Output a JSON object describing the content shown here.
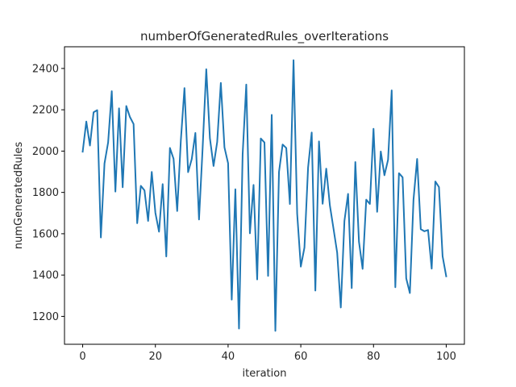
{
  "chart_data": {
    "type": "line",
    "title": "numberOfGeneratedRules_overIterations",
    "xlabel": "iteration",
    "ylabel": "numGeneratedRules",
    "xlim": [
      -5,
      105
    ],
    "ylim": [
      1065,
      2505
    ],
    "x_ticks": [
      0,
      20,
      40,
      60,
      80,
      100
    ],
    "y_ticks": [
      1200,
      1400,
      1600,
      1800,
      2000,
      2200,
      2400
    ],
    "grid": false,
    "legend": "none",
    "line_color": "#1f77b4",
    "series": [
      {
        "x": [
          0,
          1,
          2,
          3,
          4,
          5,
          6,
          7,
          8,
          9,
          10,
          11,
          12,
          13,
          14,
          15,
          16,
          17,
          18,
          19,
          20,
          21,
          22,
          23,
          24,
          25,
          26,
          27,
          28,
          29,
          30,
          31,
          32,
          33,
          34,
          35,
          36,
          37,
          38,
          39,
          40,
          41,
          42,
          43,
          44,
          45,
          46,
          47,
          48,
          49,
          50,
          51,
          52,
          53,
          54,
          55,
          56,
          57,
          58,
          59,
          60,
          61,
          62,
          63,
          64,
          65,
          66,
          67,
          68,
          69,
          70,
          71,
          72,
          73,
          74,
          75,
          76,
          77,
          78,
          79,
          80,
          81,
          82,
          83,
          84,
          85,
          86,
          87,
          88,
          89,
          90,
          91,
          92,
          93,
          94,
          95,
          96,
          97,
          98,
          99,
          100
        ],
        "values": [
          1997,
          2143,
          2027,
          2188,
          2198,
          1582,
          1940,
          2042,
          2290,
          1804,
          2207,
          1825,
          2218,
          2165,
          2131,
          1651,
          1832,
          1810,
          1662,
          1899,
          1701,
          1610,
          1840,
          1490,
          2015,
          1963,
          1710,
          2051,
          2305,
          1898,
          1961,
          2088,
          1669,
          2017,
          2396,
          2062,
          1928,
          2044,
          2330,
          2018,
          1941,
          1281,
          1815,
          1141,
          1985,
          2322,
          1602,
          1836,
          1379,
          2061,
          2042,
          1396,
          2175,
          1130,
          1899,
          2032,
          2015,
          1744,
          2440,
          1697,
          1441,
          1533,
          1920,
          2090,
          1325,
          2047,
          1745,
          1915,
          1737,
          1624,
          1509,
          1243,
          1662,
          1793,
          1337,
          1947,
          1561,
          1430,
          1765,
          1744,
          2108,
          1706,
          1998,
          1883,
          1958,
          2294,
          1341,
          1893,
          1873,
          1384,
          1313,
          1765,
          1962,
          1622,
          1612,
          1618,
          1431,
          1853,
          1826,
          1491,
          1394
        ]
      }
    ]
  }
}
